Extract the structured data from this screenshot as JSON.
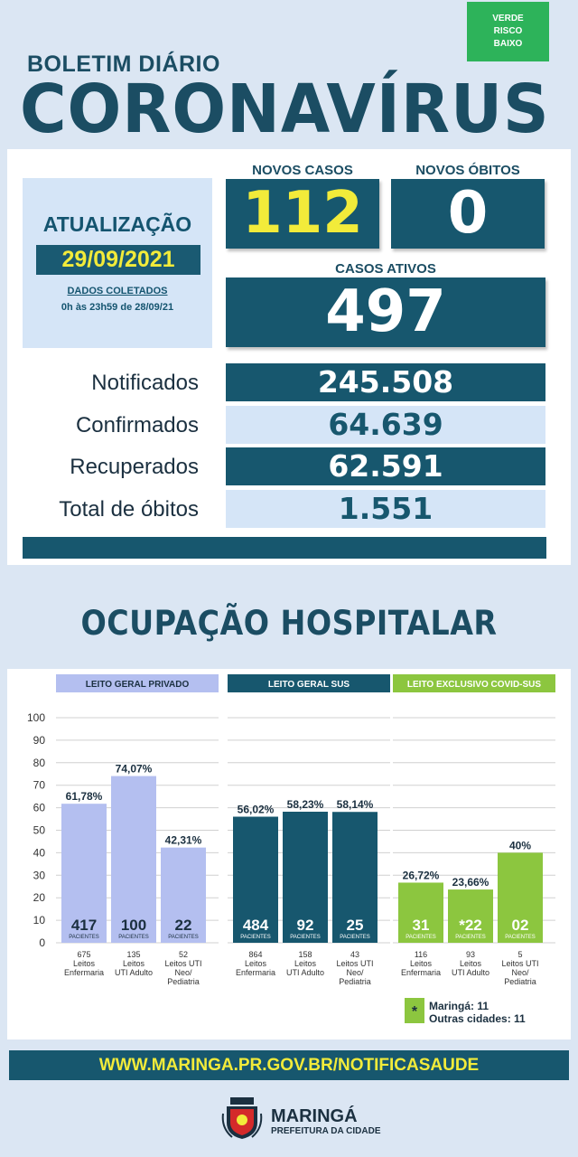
{
  "risk": {
    "line1": "VERDE",
    "line2": "RISCO",
    "line3": "BAIXO",
    "color": "#2db35a"
  },
  "header": {
    "subtitle": "BOLETIM DIÁRIO",
    "title": "CORONAVÍRUS"
  },
  "update": {
    "title": "ATUALIZAÇÃO",
    "date": "29/09/2021",
    "note1": "DADOS COLETADOS",
    "note2": "0h às 23h59 de 28/09/21"
  },
  "kpis": {
    "new_cases_label": "NOVOS CASOS",
    "new_cases": "112",
    "new_deaths_label": "NOVOS ÓBITOS",
    "new_deaths": "0",
    "active_label": "CASOS ATIVOS",
    "active": "497"
  },
  "stats": [
    {
      "label": "Notificados",
      "value": "245.508"
    },
    {
      "label": "Confirmados",
      "value": "64.639"
    },
    {
      "label": "Recuperados",
      "value": "62.591"
    },
    {
      "label": "Total de óbitos",
      "value": "1.551"
    }
  ],
  "occupancy_title": "OCUPAÇÃO HOSPITALAR",
  "chart_data": {
    "type": "bar",
    "ylim": [
      0,
      100
    ],
    "yticks": [
      0,
      10,
      20,
      30,
      40,
      50,
      60,
      70,
      80,
      90,
      100
    ],
    "patients_label": "PACIENTES",
    "groups": [
      {
        "name": "LEITO GERAL PRIVADO",
        "color": "#b4bff0",
        "header_color": "#b4bff0",
        "header_text_color": "#1b3040",
        "bars": [
          {
            "percent_label": "61,78%",
            "value": 61.78,
            "patients": "417",
            "beds": "675",
            "bed_type": "Leitos Enfermaria"
          },
          {
            "percent_label": "74,07%",
            "value": 74.07,
            "patients": "100",
            "beds": "135",
            "bed_type": "Leitos UTI Adulto"
          },
          {
            "percent_label": "42,31%",
            "value": 42.31,
            "patients": "22",
            "beds": "52",
            "bed_type": "Leitos UTI Neo/ Pediatria"
          }
        ]
      },
      {
        "name": "LEITO GERAL SUS",
        "color": "#17576e",
        "header_color": "#17576e",
        "header_text_color": "#ffffff",
        "bars": [
          {
            "percent_label": "56,02%",
            "value": 56.02,
            "patients": "484",
            "beds": "864",
            "bed_type": "Leitos Enfermaria"
          },
          {
            "percent_label": "58,23%",
            "value": 58.23,
            "patients": "92",
            "beds": "158",
            "bed_type": "Leitos UTI Adulto"
          },
          {
            "percent_label": "58,14%",
            "value": 58.14,
            "patients": "25",
            "beds": "43",
            "bed_type": "Leitos UTI Neo/ Pediatria"
          }
        ]
      },
      {
        "name": "LEITO EXCLUSIVO COVID-SUS",
        "color": "#8cc63f",
        "header_color": "#8cc63f",
        "header_text_color": "#ffffff",
        "bars": [
          {
            "percent_label": "26,72%",
            "value": 26.72,
            "patients": "31",
            "beds": "116",
            "bed_type": "Leitos Enfermaria"
          },
          {
            "percent_label": "23,66%",
            "value": 23.66,
            "patients": "*22",
            "beds": "93",
            "bed_type": "Leitos UTI Adulto"
          },
          {
            "percent_label": "40%",
            "value": 40,
            "patients": "02",
            "beds": "5",
            "bed_type": "Leitos UTI Neo/ Pediatria"
          }
        ]
      }
    ],
    "note_line1": "Maringá: 11",
    "note_line2": "Outras cidades: 11"
  },
  "footer_url": "WWW.MARINGA.PR.GOV.BR/NOTIFICASAUDE",
  "brand": {
    "name": "MARINGÁ",
    "sub": "PREFEITURA DA CIDADE"
  }
}
